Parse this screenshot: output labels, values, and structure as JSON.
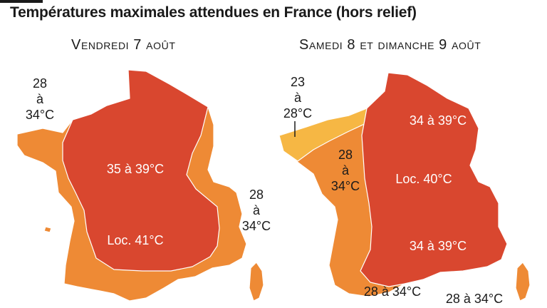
{
  "title": "Températures maximales attendues en France (hors relief)",
  "colors": {
    "hot": "#d9472f",
    "warm": "#ee8a35",
    "mild": "#f6b744",
    "text": "#1a1a1a"
  },
  "left_panel": {
    "heading": "Vendredi 7 août",
    "zones": {
      "outer": {
        "line1": "28",
        "line2": "à",
        "line3": "34°C"
      },
      "west": {
        "line1": "28",
        "line2": "à",
        "line3": "34°C"
      },
      "center": "35 à 39°C",
      "local": "Loc. 41°C"
    }
  },
  "right_panel": {
    "heading": "Samedi 8 et dimanche 9 août",
    "zones": {
      "brittany": {
        "line1": "23",
        "line2": "à",
        "line3": "28°C"
      },
      "atlantic": {
        "line1": "28",
        "line2": "à",
        "line3": "34°C"
      },
      "north_east": "34 à 39°C",
      "local": "Loc. 40°C",
      "south_east": "34 à 39°C",
      "south": "28 à 34°C",
      "corsica": "28 à 34°C"
    }
  }
}
